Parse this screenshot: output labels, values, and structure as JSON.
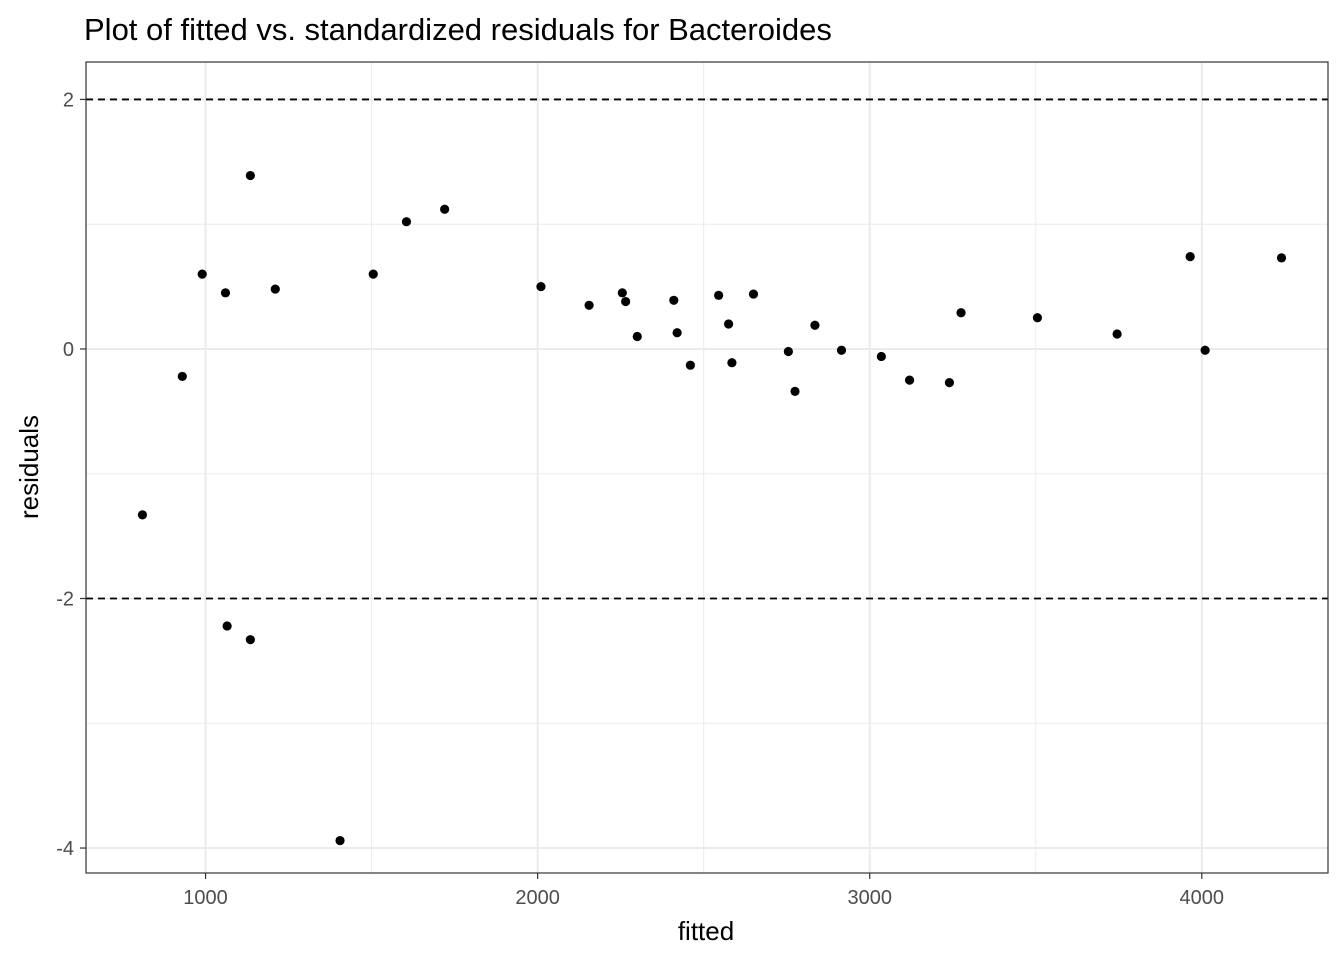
{
  "chart_data": {
    "type": "scatter",
    "title": "Plot of fitted vs. standardized residuals for Bacteroides",
    "xlabel": "fitted",
    "ylabel": "residuals",
    "xlim": [
      640,
      4380
    ],
    "ylim": [
      -4.2,
      2.3
    ],
    "x_ticks": [
      1000,
      2000,
      3000,
      4000
    ],
    "x_tick_labels": [
      "1000",
      "2000",
      "3000",
      "4000"
    ],
    "x_minor_ticks": [
      1500,
      2500,
      3500
    ],
    "y_ticks": [
      -4,
      -2,
      0,
      2
    ],
    "y_tick_labels": [
      "-4",
      "-2",
      "0",
      "2"
    ],
    "y_minor_ticks": [
      -3,
      -1,
      1
    ],
    "reference_lines": [
      {
        "y": 2,
        "style": "dashed"
      },
      {
        "y": -2,
        "style": "dashed"
      }
    ],
    "grid": true,
    "colors": {
      "points": "#000000",
      "grid": "#ebebeb",
      "panel_border": "#333333",
      "reference_line": "#000000",
      "tick_label": "#4d4d4d"
    },
    "points": [
      {
        "x": 810,
        "y": -1.33
      },
      {
        "x": 930,
        "y": -0.22
      },
      {
        "x": 990,
        "y": 0.6
      },
      {
        "x": 1060,
        "y": 0.45
      },
      {
        "x": 1065,
        "y": -2.22
      },
      {
        "x": 1135,
        "y": 1.39
      },
      {
        "x": 1135,
        "y": -2.33
      },
      {
        "x": 1210,
        "y": 0.48
      },
      {
        "x": 1405,
        "y": -3.94
      },
      {
        "x": 1505,
        "y": 0.6
      },
      {
        "x": 1605,
        "y": 1.02
      },
      {
        "x": 1720,
        "y": 1.12
      },
      {
        "x": 2010,
        "y": 0.5
      },
      {
        "x": 2155,
        "y": 0.35
      },
      {
        "x": 2255,
        "y": 0.45
      },
      {
        "x": 2265,
        "y": 0.38
      },
      {
        "x": 2300,
        "y": 0.1
      },
      {
        "x": 2410,
        "y": 0.39
      },
      {
        "x": 2420,
        "y": 0.13
      },
      {
        "x": 2460,
        "y": -0.13
      },
      {
        "x": 2545,
        "y": 0.43
      },
      {
        "x": 2575,
        "y": 0.2
      },
      {
        "x": 2585,
        "y": -0.11
      },
      {
        "x": 2650,
        "y": 0.44
      },
      {
        "x": 2755,
        "y": -0.02
      },
      {
        "x": 2775,
        "y": -0.34
      },
      {
        "x": 2835,
        "y": 0.19
      },
      {
        "x": 2915,
        "y": -0.01
      },
      {
        "x": 3035,
        "y": -0.06
      },
      {
        "x": 3120,
        "y": -0.25
      },
      {
        "x": 3240,
        "y": -0.27
      },
      {
        "x": 3275,
        "y": 0.29
      },
      {
        "x": 3505,
        "y": 0.25
      },
      {
        "x": 3745,
        "y": 0.12
      },
      {
        "x": 3965,
        "y": 0.74
      },
      {
        "x": 4010,
        "y": -0.01
      },
      {
        "x": 4240,
        "y": 0.73
      }
    ]
  }
}
